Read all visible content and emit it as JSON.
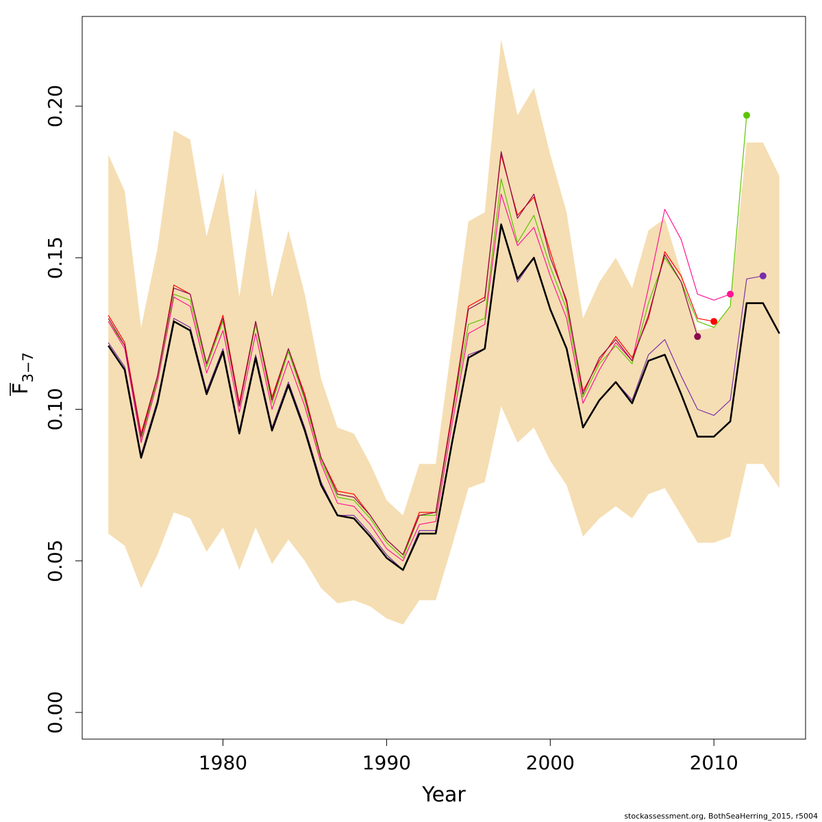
{
  "chart_data": {
    "type": "line",
    "title": "",
    "xlabel": "Year",
    "ylabel_main": "F",
    "ylabel_sub": "3−7",
    "xlim": [
      1971.4,
      2015.6
    ],
    "ylim": [
      -0.0088,
      0.2296
    ],
    "x_ticks": [
      1980,
      1990,
      2000,
      2010
    ],
    "y_ticks": [
      0.0,
      0.05,
      0.1,
      0.15,
      0.2
    ],
    "y_tick_labels": [
      "0.00",
      "0.05",
      "0.10",
      "0.15",
      "0.20"
    ],
    "grid": false,
    "legend": "none",
    "band": {
      "color": "#f5deb3",
      "x": [
        1973,
        1974,
        1975,
        1976,
        1977,
        1978,
        1979,
        1980,
        1981,
        1982,
        1983,
        1984,
        1985,
        1986,
        1987,
        1988,
        1989,
        1990,
        1991,
        1992,
        1993,
        1994,
        1995,
        1996,
        1997,
        1998,
        1999,
        2000,
        2001,
        2002,
        2003,
        2004,
        2005,
        2006,
        2007,
        2008,
        2009,
        2010,
        2011,
        2012,
        2013,
        2014
      ],
      "upper": [
        0.184,
        0.172,
        0.127,
        0.153,
        0.192,
        0.189,
        0.157,
        0.178,
        0.137,
        0.173,
        0.137,
        0.159,
        0.138,
        0.11,
        0.094,
        0.092,
        0.082,
        0.07,
        0.065,
        0.082,
        0.082,
        0.122,
        0.162,
        0.165,
        0.222,
        0.197,
        0.206,
        0.184,
        0.165,
        0.13,
        0.142,
        0.15,
        0.14,
        0.159,
        0.163,
        0.145,
        0.126,
        0.127,
        0.134,
        0.188,
        0.188,
        0.177
      ],
      "lower": [
        0.059,
        0.055,
        0.041,
        0.052,
        0.066,
        0.064,
        0.053,
        0.061,
        0.047,
        0.061,
        0.049,
        0.057,
        0.05,
        0.041,
        0.036,
        0.037,
        0.035,
        0.031,
        0.029,
        0.037,
        0.037,
        0.055,
        0.074,
        0.076,
        0.101,
        0.089,
        0.094,
        0.083,
        0.075,
        0.058,
        0.064,
        0.068,
        0.064,
        0.072,
        0.074,
        0.065,
        0.056,
        0.056,
        0.058,
        0.082,
        0.082,
        0.074
      ]
    },
    "series": [
      {
        "color": "#5ec400",
        "width": 1.2,
        "x": [
          1973,
          1974,
          1975,
          1976,
          1977,
          1978,
          1979,
          1980,
          1981,
          1982,
          1983,
          1984,
          1985,
          1986,
          1987,
          1988,
          1989,
          1990,
          1991,
          1992,
          1993,
          1994,
          1995,
          1996,
          1997,
          1998,
          1999,
          2000,
          2001,
          2002,
          2003,
          2004,
          2005,
          2006,
          2007,
          2008,
          2009,
          2010,
          2011,
          2012
        ],
        "values": [
          0.129,
          0.121,
          0.09,
          0.11,
          0.138,
          0.136,
          0.114,
          0.129,
          0.101,
          0.128,
          0.102,
          0.119,
          0.103,
          0.083,
          0.071,
          0.07,
          0.064,
          0.056,
          0.051,
          0.065,
          0.065,
          0.098,
          0.128,
          0.13,
          0.176,
          0.155,
          0.164,
          0.147,
          0.133,
          0.104,
          0.115,
          0.121,
          0.115,
          0.135,
          0.15,
          0.142,
          0.129,
          0.127,
          0.134,
          0.197
        ],
        "endpoint": [
          2012,
          0.197
        ]
      },
      {
        "color": "#ff1493",
        "width": 1.2,
        "x": [
          1973,
          1974,
          1975,
          1976,
          1977,
          1978,
          1979,
          1980,
          1981,
          1982,
          1983,
          1984,
          1985,
          1986,
          1987,
          1988,
          1989,
          1990,
          1991,
          1992,
          1993,
          1994,
          1995,
          1996,
          1997,
          1998,
          1999,
          2000,
          2001,
          2002,
          2003,
          2004,
          2005,
          2006,
          2007,
          2008,
          2009,
          2010,
          2011
        ],
        "values": [
          0.129,
          0.12,
          0.089,
          0.109,
          0.137,
          0.134,
          0.112,
          0.126,
          0.099,
          0.125,
          0.1,
          0.116,
          0.101,
          0.082,
          0.069,
          0.068,
          0.062,
          0.054,
          0.05,
          0.062,
          0.063,
          0.095,
          0.125,
          0.128,
          0.171,
          0.154,
          0.16,
          0.144,
          0.13,
          0.102,
          0.113,
          0.122,
          0.116,
          0.14,
          0.166,
          0.156,
          0.138,
          0.136,
          0.138
        ],
        "endpoint": [
          2011,
          0.138
        ]
      },
      {
        "color": "#ff0000",
        "width": 1.2,
        "x": [
          1973,
          1974,
          1975,
          1976,
          1977,
          1978,
          1979,
          1980,
          1981,
          1982,
          1983,
          1984,
          1985,
          1986,
          1987,
          1988,
          1989,
          1990,
          1991,
          1992,
          1993,
          1994,
          1995,
          1996,
          1997,
          1998,
          1999,
          2000,
          2001,
          2002,
          2003,
          2004,
          2005,
          2006,
          2007,
          2008,
          2009,
          2010
        ],
        "values": [
          0.131,
          0.122,
          0.092,
          0.111,
          0.141,
          0.138,
          0.115,
          0.131,
          0.102,
          0.129,
          0.104,
          0.12,
          0.105,
          0.084,
          0.073,
          0.072,
          0.065,
          0.057,
          0.052,
          0.066,
          0.066,
          0.099,
          0.134,
          0.137,
          0.184,
          0.164,
          0.17,
          0.152,
          0.135,
          0.106,
          0.116,
          0.124,
          0.117,
          0.13,
          0.152,
          0.144,
          0.13,
          0.129
        ],
        "endpoint": [
          2010,
          0.129
        ]
      },
      {
        "color": "#8b0a50",
        "width": 1.2,
        "x": [
          1973,
          1974,
          1975,
          1976,
          1977,
          1978,
          1979,
          1980,
          1981,
          1982,
          1983,
          1984,
          1985,
          1986,
          1987,
          1988,
          1989,
          1990,
          1991,
          1992,
          1993,
          1994,
          1995,
          1996,
          1997,
          1998,
          1999,
          2000,
          2001,
          2002,
          2003,
          2004,
          2005,
          2006,
          2007,
          2008,
          2009
        ],
        "values": [
          0.13,
          0.121,
          0.091,
          0.111,
          0.14,
          0.138,
          0.115,
          0.13,
          0.101,
          0.129,
          0.103,
          0.12,
          0.104,
          0.084,
          0.072,
          0.071,
          0.065,
          0.057,
          0.052,
          0.065,
          0.066,
          0.098,
          0.133,
          0.136,
          0.185,
          0.163,
          0.171,
          0.15,
          0.136,
          0.105,
          0.117,
          0.123,
          0.116,
          0.131,
          0.151,
          0.142,
          0.124
        ],
        "endpoint": [
          2009,
          0.124
        ]
      },
      {
        "color": "#7b2fa8",
        "width": 1.2,
        "x": [
          1973,
          1974,
          1975,
          1976,
          1977,
          1978,
          1979,
          1980,
          1981,
          1982,
          1983,
          1984,
          1985,
          1986,
          1987,
          1988,
          1989,
          1990,
          1991,
          1992,
          1993,
          1994,
          1995,
          1996,
          1997,
          1998,
          1999,
          2000,
          2001,
          2002,
          2003,
          2004,
          2005,
          2006,
          2007,
          2008,
          2009,
          2010,
          2011,
          2012,
          2013
        ],
        "values": [
          0.122,
          0.114,
          0.085,
          0.103,
          0.13,
          0.127,
          0.106,
          0.12,
          0.093,
          0.118,
          0.094,
          0.109,
          0.094,
          0.076,
          0.065,
          0.065,
          0.059,
          0.052,
          0.047,
          0.06,
          0.06,
          0.089,
          0.118,
          0.12,
          0.161,
          0.142,
          0.15,
          0.133,
          0.12,
          0.094,
          0.103,
          0.109,
          0.103,
          0.118,
          0.123,
          0.111,
          0.1,
          0.098,
          0.103,
          0.143,
          0.144
        ],
        "endpoint": [
          2013,
          0.144
        ]
      },
      {
        "color": "#000000",
        "width": 2.6,
        "x": [
          1973,
          1974,
          1975,
          1976,
          1977,
          1978,
          1979,
          1980,
          1981,
          1982,
          1983,
          1984,
          1985,
          1986,
          1987,
          1988,
          1989,
          1990,
          1991,
          1992,
          1993,
          1994,
          1995,
          1996,
          1997,
          1998,
          1999,
          2000,
          2001,
          2002,
          2003,
          2004,
          2005,
          2006,
          2007,
          2008,
          2009,
          2010,
          2011,
          2012,
          2013,
          2014
        ],
        "values": [
          0.121,
          0.113,
          0.084,
          0.102,
          0.129,
          0.126,
          0.105,
          0.119,
          0.092,
          0.117,
          0.093,
          0.108,
          0.093,
          0.075,
          0.065,
          0.064,
          0.058,
          0.051,
          0.047,
          0.059,
          0.059,
          0.089,
          0.117,
          0.12,
          0.161,
          0.143,
          0.15,
          0.133,
          0.12,
          0.094,
          0.103,
          0.109,
          0.102,
          0.116,
          0.118,
          0.105,
          0.091,
          0.091,
          0.096,
          0.135,
          0.135,
          0.125
        ]
      }
    ]
  },
  "footer": "stockassessment.org, BothSeaHerring_2015, r5004"
}
